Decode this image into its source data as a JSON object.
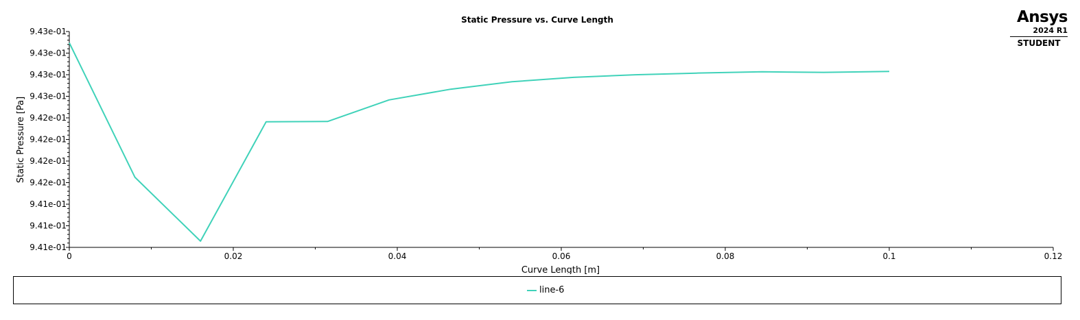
{
  "logo": {
    "brand": "Ansys",
    "version": "2024 R1",
    "edition": "STUDENT"
  },
  "colors": {
    "series": "#3fd2b9",
    "axis": "#000000"
  },
  "chart_data": {
    "type": "line",
    "title": "Static Pressure vs. Curve Length",
    "xlabel": "Curve Length [m]",
    "ylabel": "Static Pressure [Pa]",
    "xlim": [
      0,
      0.12
    ],
    "ylim": [
      0.94095,
      0.94345
    ],
    "x_ticks": [
      0,
      0.02,
      0.04,
      0.06,
      0.08,
      0.1,
      0.12
    ],
    "x_tick_labels": [
      "0",
      "0.02",
      "0.04",
      "0.06",
      "0.08",
      "0.1",
      "0.12"
    ],
    "y_ticks": [
      0.94095,
      0.9412,
      0.94145,
      0.9417,
      0.94195,
      0.9422,
      0.94245,
      0.9427,
      0.94295,
      0.9432,
      0.94345
    ],
    "y_tick_labels": [
      "9.41e-01",
      "9.41e-01",
      "9.41e-01",
      "9.42e-01",
      "9.42e-01",
      "9.42e-01",
      "9.42e-01",
      "9.43e-01",
      "9.43e-01",
      "9.43e-01",
      "9.43e-01"
    ],
    "grid": false,
    "legend_position": "bottom",
    "series": [
      {
        "name": "line-6",
        "x": [
          0,
          0.008,
          0.016,
          0.024,
          0.0315,
          0.039,
          0.0465,
          0.054,
          0.0615,
          0.069,
          0.0765,
          0.0845,
          0.092,
          0.1
        ],
        "y": [
          0.943319,
          0.941763,
          0.941022,
          0.942404,
          0.942408,
          0.942658,
          0.942782,
          0.942868,
          0.942919,
          0.942949,
          0.942968,
          0.942983,
          0.942977,
          0.942987
        ]
      }
    ]
  }
}
